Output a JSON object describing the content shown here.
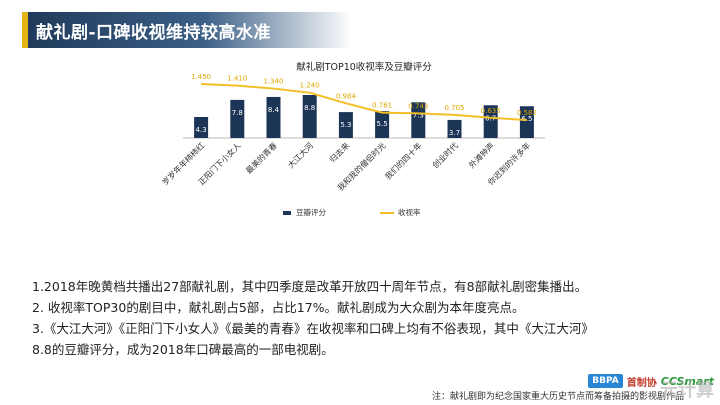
{
  "header": {
    "title": "献礼剧-口碑收视维持较高水准"
  },
  "chart_data": {
    "type": "bar",
    "title": "献礼剧TOP10收视率及豆瓣评分",
    "categories": [
      "岁岁年年柿柿红",
      "正阳门下小女人",
      "最美的青春",
      "大江大河",
      "归去来",
      "我和我的僧侣时光",
      "我们的四十年",
      "创业时代",
      "外滩钟声",
      "你迟到的许多年"
    ],
    "series": [
      {
        "name": "豆瓣评分",
        "kind": "bar",
        "color": "#1c3556",
        "values": [
          4.3,
          7.8,
          8.4,
          8.8,
          5.3,
          5.5,
          7.3,
          3.7,
          6.7,
          6.5
        ],
        "labels": [
          "4.3",
          "7.8",
          "8.4",
          "8.8",
          "5.3",
          "5.5",
          "7.3",
          "3.7",
          "6.7",
          "6.5"
        ]
      },
      {
        "name": "收视率",
        "kind": "line",
        "color": "#f2bf26",
        "values": [
          1.45,
          1.41,
          1.34,
          1.24,
          0.984,
          0.761,
          0.743,
          0.705,
          0.635,
          0.582
        ],
        "labels": [
          "1.450",
          "1.410",
          "1.340",
          "1.240",
          "0.984",
          "0.761",
          "0.743",
          "0.705",
          "0.635",
          "0.582"
        ]
      }
    ],
    "legend_position": "bottom"
  },
  "notes": [
    "1.2018年晚黄档共播出27部献礼剧，其中四季度是改革开放四十周年节点，有8部献礼剧密集播出。",
    "2. 收视率TOP30的剧目中，献礼剧占5部，占比17%。献礼剧成为大众剧为本年度亮点。",
    "3.《大江大河》《正阳门下小女人》《最美的青春》在收视率和口碑上均有不俗表现，其中《大江大河》",
    "8.8的豆瓣评分，成为2018年口碑最高的一部电视剧。"
  ],
  "footer": {
    "note": "注：献礼剧即为纪念国家重大历史节点而筹备拍摄的影视剧作品",
    "logo_bbpa": "BBPA",
    "logo_text": "首制协",
    "logo_cc": "CCSmart",
    "logo_cc2": "",
    "watermark": "元计算"
  }
}
